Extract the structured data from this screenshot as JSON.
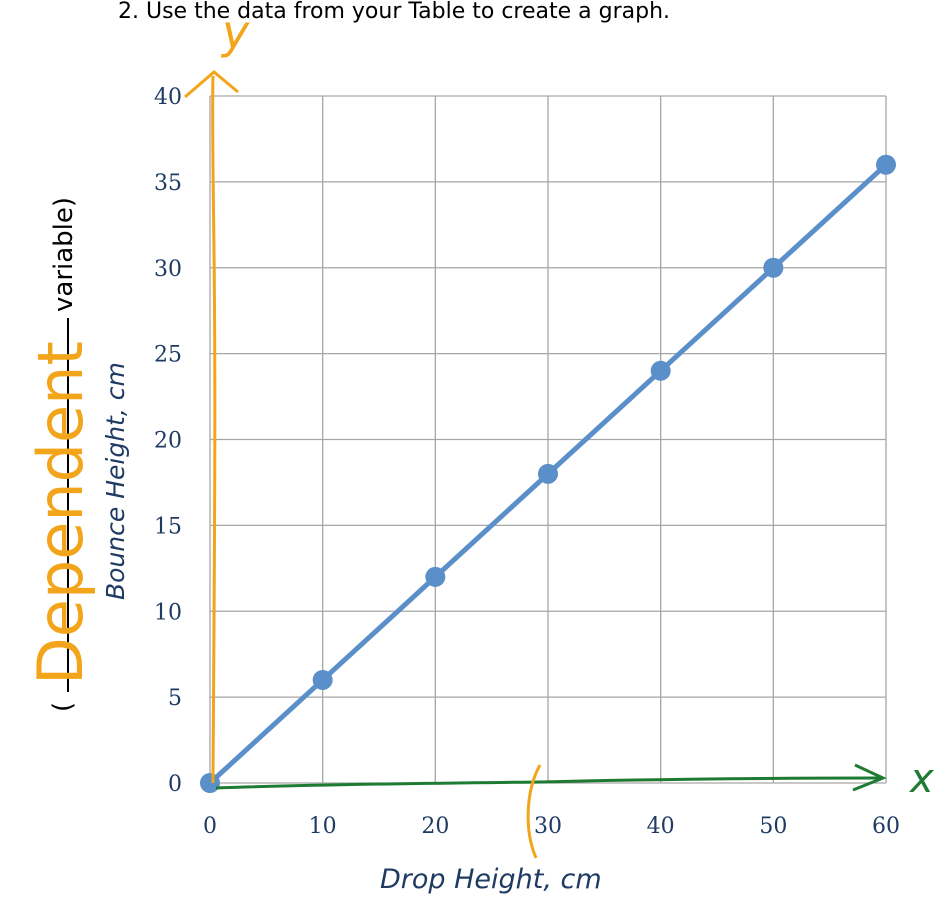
{
  "header": {
    "instruction": "2. Use the data from your Table to create a graph."
  },
  "annotations": {
    "y_axis_letter": "y",
    "x_axis_letter": "x",
    "variable_word": "Dependent",
    "variable_suffix": "variable)",
    "open_paren": "("
  },
  "chart_data": {
    "type": "line",
    "title": "",
    "xlabel": "Drop Height, cm",
    "ylabel": "Bounce Height, cm",
    "x": [
      0,
      10,
      20,
      30,
      40,
      50,
      60
    ],
    "series": [
      {
        "values": [
          0,
          6,
          12,
          18,
          24,
          30,
          36
        ]
      }
    ],
    "xlim": [
      0,
      60
    ],
    "ylim": [
      0,
      40
    ],
    "x_ticks": [
      0,
      10,
      20,
      30,
      40,
      50,
      60
    ],
    "y_ticks": [
      0,
      5,
      10,
      15,
      20,
      25,
      30,
      35,
      40
    ],
    "grid": true,
    "colors": {
      "line": "#5b8fc9",
      "grid": "#a6a6a6",
      "tick_text": "#1f3b63",
      "y_annotation": "#f2a51a",
      "x_annotation": "#1e7b34",
      "axis_label_ink": "#1f3b63"
    }
  }
}
